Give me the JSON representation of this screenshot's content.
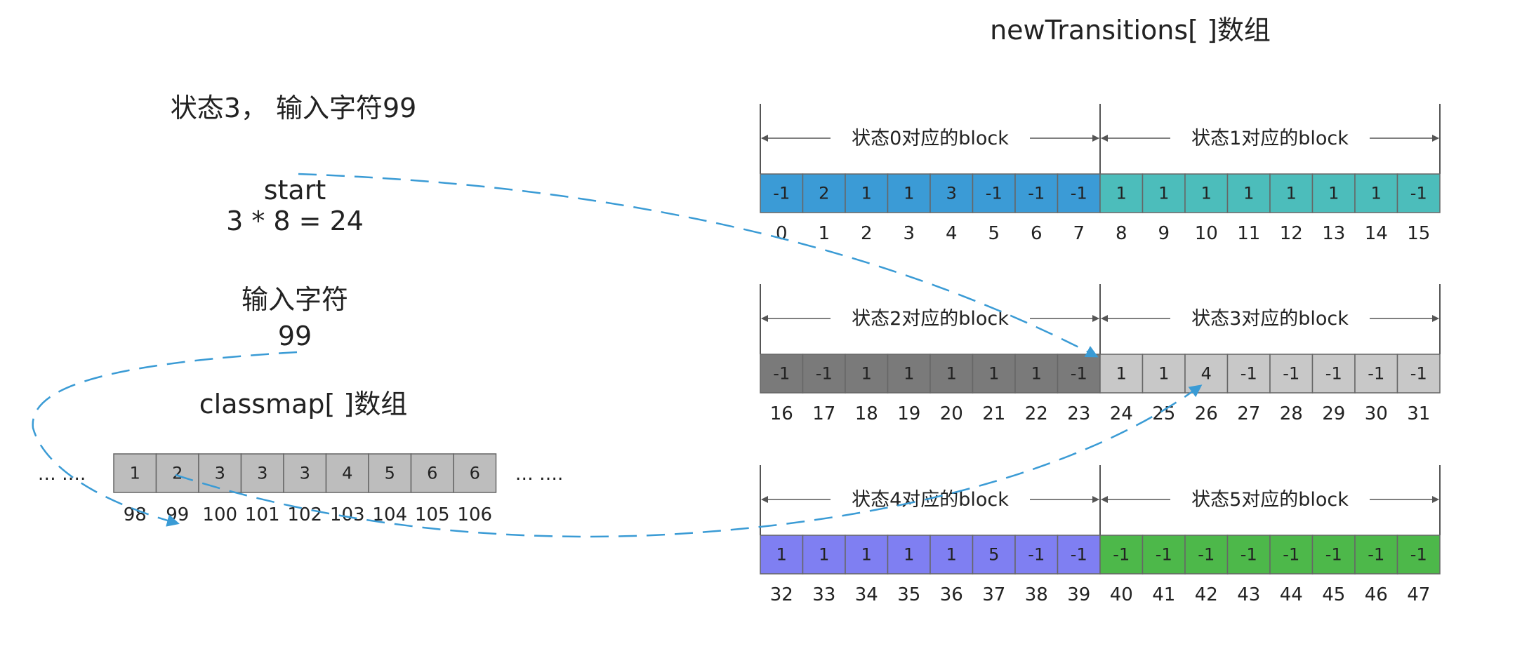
{
  "title": "newTransitions[ ]数组",
  "state_input": "状态3， 输入字符99",
  "start_label": "start",
  "start_calc": "3 * 8 = 24",
  "input_label": "输入字符",
  "input_value": "99",
  "classmap_title": "classmap[ ]数组",
  "classmap": {
    "values": [
      "1",
      "2",
      "3",
      "3",
      "3",
      "4",
      "5",
      "6",
      "6"
    ],
    "indices": [
      "98",
      "99",
      "100",
      "101",
      "102",
      "103",
      "104",
      "105",
      "106"
    ],
    "ellipsis_left": "… ….",
    "ellipsis_right": "… ….",
    "color": "#bdbdbd"
  },
  "rows": [
    {
      "blocks": [
        {
          "label": "状态0对应的block",
          "color": "#3b9bd6",
          "values": [
            "-1",
            "2",
            "1",
            "1",
            "3",
            "-1",
            "-1",
            "-1"
          ],
          "indices": [
            "0",
            "1",
            "2",
            "3",
            "4",
            "5",
            "6",
            "7"
          ]
        },
        {
          "label": "状态1对应的block",
          "color": "#4cbdbb",
          "values": [
            "1",
            "1",
            "1",
            "1",
            "1",
            "1",
            "1",
            "-1"
          ],
          "indices": [
            "8",
            "9",
            "10",
            "11",
            "12",
            "13",
            "14",
            "15"
          ]
        }
      ]
    },
    {
      "blocks": [
        {
          "label": "状态2对应的block",
          "color": "#7a7a7a",
          "values": [
            "-1",
            "-1",
            "1",
            "1",
            "1",
            "1",
            "1",
            "-1"
          ],
          "indices": [
            "16",
            "17",
            "18",
            "19",
            "20",
            "21",
            "22",
            "23"
          ]
        },
        {
          "label": "状态3对应的block",
          "color": "#c8c8c8",
          "values": [
            "1",
            "1",
            "4",
            "-1",
            "-1",
            "-1",
            "-1",
            "-1"
          ],
          "indices": [
            "24",
            "25",
            "26",
            "27",
            "28",
            "29",
            "30",
            "31"
          ]
        }
      ]
    },
    {
      "blocks": [
        {
          "label": "状态4对应的block",
          "color": "#7f7ff2",
          "values": [
            "1",
            "1",
            "1",
            "1",
            "1",
            "5",
            "-1",
            "-1"
          ],
          "indices": [
            "32",
            "33",
            "34",
            "35",
            "36",
            "37",
            "38",
            "39"
          ]
        },
        {
          "label": "状态5对应的block",
          "color": "#4db84a",
          "values": [
            "-1",
            "-1",
            "-1",
            "-1",
            "-1",
            "-1",
            "-1",
            "-1"
          ],
          "indices": [
            "40",
            "41",
            "42",
            "43",
            "44",
            "45",
            "46",
            "47"
          ]
        }
      ]
    }
  ],
  "colors": {
    "arrow": "#3a9bd5",
    "cell_border": "#666666",
    "dimension_line": "#555555"
  }
}
